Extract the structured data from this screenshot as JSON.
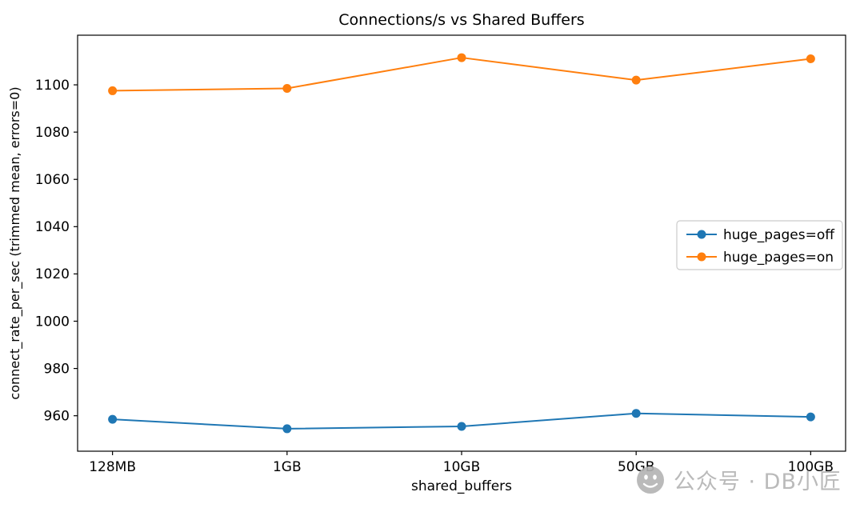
{
  "figure": {
    "background": "#ffffff"
  },
  "watermark": {
    "text": "公众号 · DB小匠",
    "color": "#b3b3b3",
    "icon": "wechat-face-icon"
  },
  "chart_data": {
    "type": "line",
    "title": "Connections/s vs Shared Buffers",
    "xlabel": "shared_buffers",
    "ylabel": "connect_rate_per_sec (trimmed mean, errors=0)",
    "categories": [
      "128MB",
      "1GB",
      "10GB",
      "50GB",
      "100GB"
    ],
    "series": [
      {
        "name": "huge_pages=off",
        "color": "#1f77b4",
        "marker": "o",
        "values": [
          958.5,
          954.5,
          955.5,
          961.0,
          959.5
        ]
      },
      {
        "name": "huge_pages=on",
        "color": "#ff7f0e",
        "marker": "o",
        "values": [
          1097.5,
          1098.5,
          1111.5,
          1102.0,
          1111.0
        ]
      }
    ],
    "ylim": [
      945,
      1121
    ],
    "yticks": [
      960,
      980,
      1000,
      1020,
      1040,
      1060,
      1080,
      1100
    ],
    "grid": false,
    "legend_position": "center right",
    "axis_color": "#000000",
    "text_color": "#000000"
  }
}
